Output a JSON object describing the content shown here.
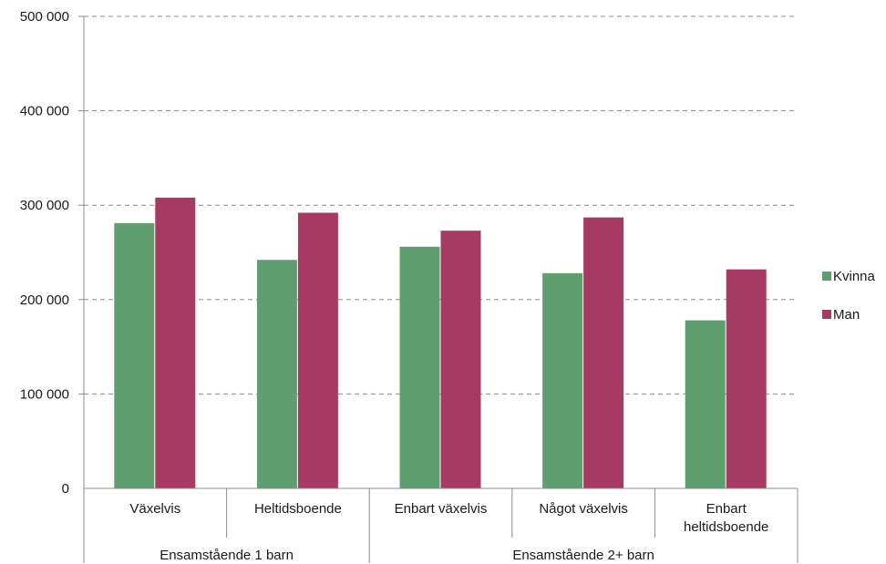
{
  "chart_data": {
    "type": "bar",
    "groups": [
      {
        "label": "Ensamstående 1 barn",
        "categories": [
          "Växelvis",
          "Heltidsboende"
        ]
      },
      {
        "label": "Ensamstående 2+ barn",
        "categories": [
          "Enbart växelvis",
          "Något växelvis",
          "Enbart heltidsboende"
        ]
      }
    ],
    "categories": [
      "Växelvis",
      "Heltidsboende",
      "Enbart växelvis",
      "Något växelvis",
      "Enbart heltidsboende"
    ],
    "category_lines": [
      [
        "Växelvis"
      ],
      [
        "Heltidsboende"
      ],
      [
        "Enbart växelvis"
      ],
      [
        "Något växelvis"
      ],
      [
        "Enbart",
        "heltidsboende"
      ]
    ],
    "series": [
      {
        "name": "Kvinna",
        "color": "#5f9e6e",
        "values": [
          281000,
          242000,
          256000,
          228000,
          178000
        ]
      },
      {
        "name": "Man",
        "color": "#a63a62",
        "values": [
          308000,
          292000,
          273000,
          287000,
          232000
        ]
      }
    ],
    "yticks": [
      0,
      100000,
      200000,
      300000,
      400000,
      500000
    ],
    "ytick_labels": [
      "0",
      "100 000",
      "200 000",
      "300 000",
      "400 000",
      "500 000"
    ],
    "ylim": [
      0,
      500000
    ],
    "grid": true,
    "legend_position": "right"
  }
}
